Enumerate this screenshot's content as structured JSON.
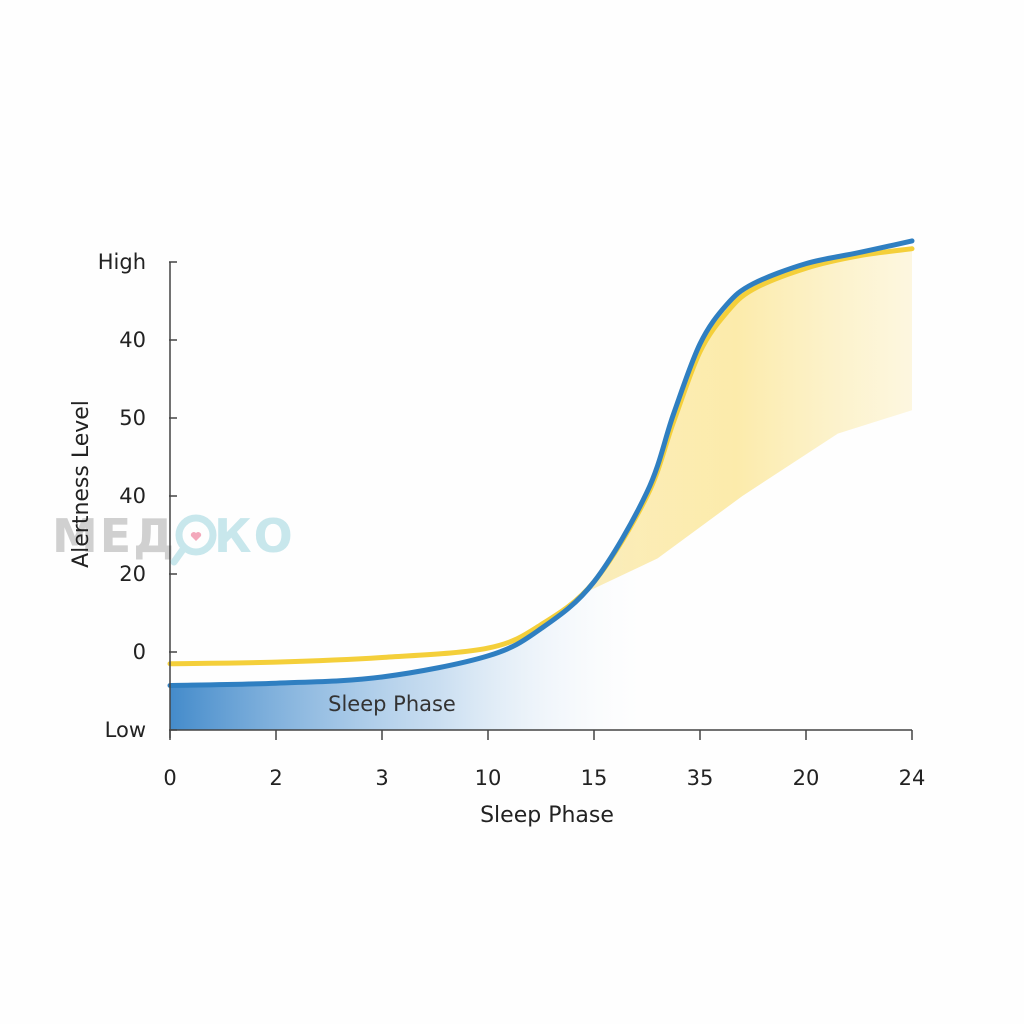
{
  "chart_data": {
    "type": "line",
    "title": "",
    "xlabel": "Sleep Phase",
    "ylabel": "Alertness Level",
    "x_ticks": [
      "0",
      "2",
      "3",
      "10",
      "15",
      "35",
      "20",
      "24"
    ],
    "y_ticks": [
      "Low",
      "0",
      "20",
      "40",
      "50",
      "40",
      "High"
    ],
    "x_index_range": [
      0,
      7
    ],
    "y_index_range": [
      0,
      6
    ],
    "annotation": "Sleep Phase",
    "legend": "none",
    "grid": false,
    "series": [
      {
        "color": "#2f7fc1",
        "x": [
          0,
          1,
          2,
          3,
          3.5,
          4,
          4.5,
          4.75,
          5,
          5.25,
          5.5,
          6,
          6.5,
          7
        ],
        "y": [
          0.57,
          0.6,
          0.68,
          0.95,
          1.3,
          1.9,
          3.05,
          4.05,
          4.95,
          5.45,
          5.72,
          5.98,
          6.12,
          6.27
        ]
      },
      {
        "color": "#f4cf3a",
        "x": [
          0,
          1,
          2,
          3,
          3.5,
          4,
          4.5,
          4.75,
          5,
          5.25,
          5.5,
          6,
          6.5,
          7
        ],
        "y": [
          0.85,
          0.87,
          0.93,
          1.05,
          1.35,
          1.9,
          3.0,
          3.95,
          4.85,
          5.35,
          5.65,
          5.92,
          6.08,
          6.17
        ]
      }
    ],
    "colors": {
      "blue_fill": "#2f7fc1",
      "yellow_fill": "#f7d24a",
      "axis": "#444444"
    }
  },
  "watermark": {
    "left": "МЕД",
    "right": "КО"
  }
}
